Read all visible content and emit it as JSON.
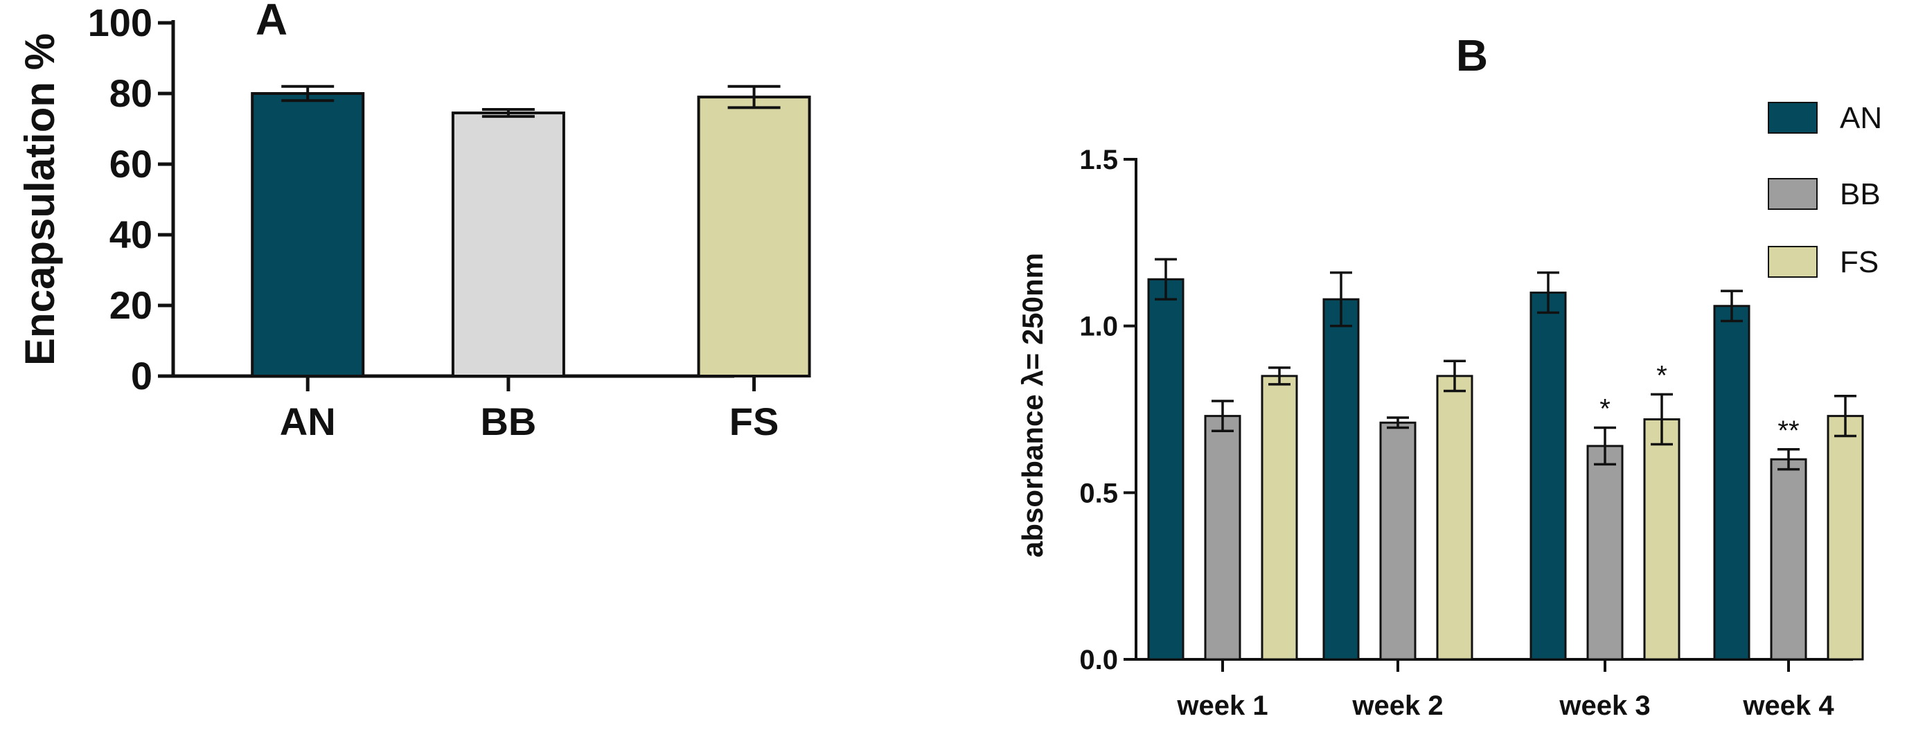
{
  "chart_data": [
    {
      "panel": "A",
      "type": "bar",
      "title": "A",
      "xlabel": "",
      "ylabel": "Encapsulation %",
      "ylim": [
        0,
        100
      ],
      "yticks": [
        "0",
        "20",
        "40",
        "60",
        "80",
        "100"
      ],
      "categories": [
        "AN",
        "BB",
        "FS"
      ],
      "values": [
        80,
        74.5,
        79
      ],
      "errors": [
        2,
        1,
        3
      ],
      "colors": [
        "#054a5c",
        "#d9d9d9",
        "#d8d6a3"
      ]
    },
    {
      "panel": "B",
      "type": "bar",
      "title": "B",
      "xlabel": "",
      "ylabel": "absorbance λ= 250nm",
      "ylim": [
        0,
        1.5
      ],
      "yticks": [
        "0.0",
        "0.5",
        "1.0",
        "1.5"
      ],
      "categories": [
        "week 1",
        "week 2",
        "week 3",
        "week 4"
      ],
      "legend": "top-right",
      "series": [
        {
          "name": "AN",
          "color": "#054a5c",
          "values": [
            1.14,
            1.08,
            1.1,
            1.06
          ],
          "errors": [
            0.06,
            0.08,
            0.06,
            0.045
          ],
          "sig": [
            "",
            "",
            "",
            ""
          ]
        },
        {
          "name": "BB",
          "color": "#9e9e9e",
          "values": [
            0.73,
            0.71,
            0.64,
            0.6
          ],
          "errors": [
            0.045,
            0.015,
            0.055,
            0.03
          ],
          "sig": [
            "",
            "",
            "*",
            "**"
          ]
        },
        {
          "name": "FS",
          "color": "#d8d6a3",
          "values": [
            0.85,
            0.85,
            0.72,
            0.73
          ],
          "errors": [
            0.025,
            0.045,
            0.075,
            0.06
          ],
          "sig": [
            "",
            "",
            "*",
            ""
          ]
        }
      ]
    }
  ]
}
